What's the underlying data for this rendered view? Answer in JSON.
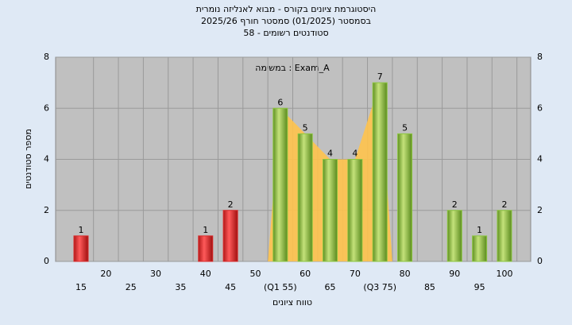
{
  "chart_data": {
    "type": "bar",
    "title": [
      "היסטוגרמת ציונים בקורס - מבוא לאנליזה נומרית",
      "בסמסטר  (01/2025)  סמסטר חורף 2025/26",
      "סטודנטים רשומים - 58"
    ],
    "annotation": "במשימה : Exam_A",
    "x_label": "טווח ציונים",
    "y_label": "מספר סטודנטים",
    "categories": [
      "15",
      "20",
      "25",
      "30",
      "35",
      "40",
      "45",
      "50",
      "(Q1 55)",
      "60",
      "65",
      "70",
      "(Q3 75)",
      "80",
      "85",
      "90",
      "95",
      "100"
    ],
    "values": [
      1,
      0,
      0,
      0,
      0,
      1,
      2,
      0,
      6,
      5,
      4,
      4,
      7,
      5,
      0,
      2,
      1,
      2
    ],
    "colors": [
      "#d82a2a",
      "#d82a2a",
      "#d82a2a",
      "#d82a2a",
      "#d82a2a",
      "#d82a2a",
      "#d82a2a",
      "#d82a2a",
      "#8cc63f",
      "#8cc63f",
      "#8cc63f",
      "#8cc63f",
      "#8cc63f",
      "#8cc63f",
      "#8cc63f",
      "#8cc63f",
      "#8cc63f",
      "#8cc63f"
    ],
    "ylim": [
      0,
      8
    ],
    "yticks": [
      0,
      2,
      4,
      6,
      8
    ],
    "grid": true
  }
}
